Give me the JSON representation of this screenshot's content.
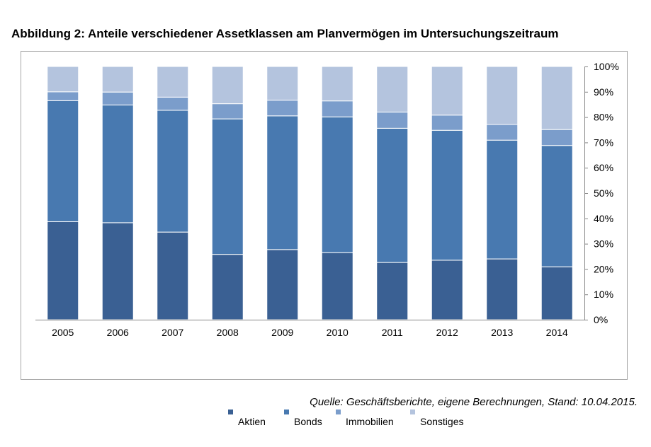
{
  "figure": {
    "title": "Abbildung 2: Anteile verschiedener Assetklassen am Planvermögen im Untersuchungszeitraum",
    "source": "Quelle: Geschäftsberichte, eigene Berechnungen, Stand: 10.04.2015."
  },
  "chart_data": {
    "type": "bar",
    "stacked": true,
    "categories": [
      "2005",
      "2006",
      "2007",
      "2008",
      "2009",
      "2010",
      "2011",
      "2012",
      "2013",
      "2014"
    ],
    "series": [
      {
        "name": "Aktien",
        "color": "#3a6093",
        "values": [
          38.7,
          38.3,
          34.6,
          25.8,
          27.7,
          26.5,
          22.6,
          23.5,
          24.0,
          20.9
        ]
      },
      {
        "name": "Bonds",
        "color": "#4879b0",
        "values": [
          47.8,
          46.5,
          48.1,
          53.5,
          52.8,
          53.6,
          53.0,
          51.3,
          46.9,
          47.9
        ]
      },
      {
        "name": "Immobilien",
        "color": "#7b9dcb",
        "values": [
          3.5,
          5.1,
          5.2,
          6.0,
          6.2,
          6.3,
          6.4,
          6.0,
          6.2,
          6.3
        ]
      },
      {
        "name": "Sonstiges",
        "color": "#b4c4de",
        "values": [
          10.0,
          10.1,
          12.1,
          14.7,
          13.3,
          13.6,
          18.0,
          19.2,
          22.9,
          24.9
        ]
      }
    ],
    "yticks": [
      "0%",
      "10%",
      "20%",
      "30%",
      "40%",
      "50%",
      "60%",
      "70%",
      "80%",
      "90%",
      "100%"
    ],
    "ylim": [
      0,
      100
    ],
    "y_axis_position": "right",
    "grid": false,
    "legend_position": "bottom"
  }
}
